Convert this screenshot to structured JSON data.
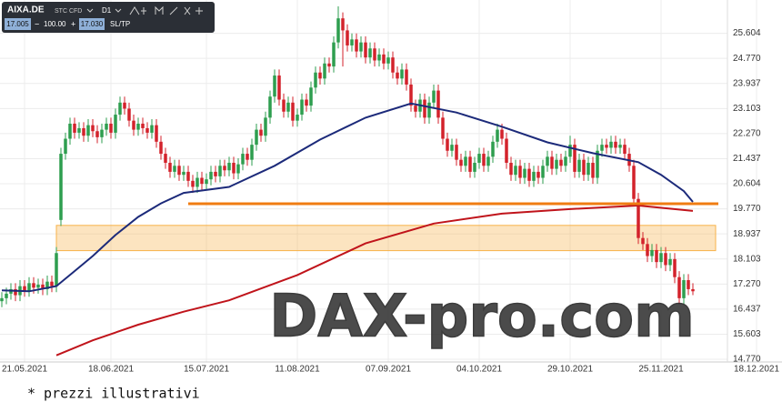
{
  "chart_data": {
    "type": "candlestick",
    "toolbar": {
      "symbol": "AIXA.DE",
      "instrument": "STC CFD",
      "timeframe": "D1",
      "bid": "17.005",
      "minus": "−",
      "volume": "100.00",
      "plus": "+",
      "ask": "17.030",
      "sl_tp": "SL/TP"
    },
    "watermark": "DAX-pro.com",
    "footnote": "* prezzi illustrativi",
    "up_color": "#2e9e4f",
    "down_color": "#d3222b",
    "ylim": [
      14.68,
      26.71
    ],
    "yticks": [
      25.604,
      {
        "value": 24.77,
        "label": "24.770"
      },
      23.937,
      23.103,
      {
        "value": 22.27,
        "label": "22.270"
      },
      21.437,
      20.604,
      {
        "value": 19.77,
        "label": "19.770"
      },
      18.937,
      18.103,
      {
        "value": 17.27,
        "label": "17.270"
      },
      16.437,
      15.603,
      {
        "value": 14.77,
        "label": "14.770"
      }
    ],
    "grid": true,
    "categories": [
      null,
      null,
      null,
      null,
      null,
      "21.05.2021",
      null,
      null,
      null,
      null,
      null,
      null,
      null,
      null,
      null,
      null,
      null,
      null,
      null,
      null,
      null,
      null,
      null,
      null,
      "18.06.2021",
      null,
      null,
      null,
      null,
      null,
      null,
      null,
      null,
      null,
      null,
      null,
      null,
      null,
      null,
      null,
      null,
      null,
      null,
      null,
      null,
      "15.07.2021",
      null,
      null,
      null,
      null,
      null,
      null,
      null,
      null,
      null,
      null,
      null,
      null,
      null,
      null,
      null,
      null,
      null,
      null,
      null,
      "11.08.2021",
      null,
      null,
      null,
      null,
      null,
      null,
      null,
      null,
      null,
      null,
      null,
      null,
      null,
      null,
      null,
      null,
      null,
      null,
      null,
      "07.09.2021",
      null,
      null,
      null,
      null,
      null,
      null,
      null,
      null,
      null,
      null,
      null,
      null,
      null,
      null,
      null,
      null,
      null,
      null,
      null,
      "04.10.2021",
      null,
      null,
      null,
      null,
      null,
      null,
      null,
      null,
      null,
      null,
      null,
      null,
      null,
      null,
      null,
      null,
      null,
      null,
      null,
      "29.10.2021",
      null,
      null,
      null,
      null,
      null,
      null,
      null,
      null,
      null,
      null,
      null,
      null,
      null,
      null,
      null,
      null,
      null,
      null,
      null,
      "25.11.2021",
      null,
      null,
      null,
      null,
      null,
      null,
      null,
      null,
      null,
      null,
      null,
      null,
      null,
      null,
      null,
      null,
      null,
      null,
      null,
      null,
      "18.12.2021"
    ],
    "ohlc": [
      [
        16.7,
        17.0,
        16.5,
        16.8
      ],
      [
        16.8,
        17.15,
        16.6,
        16.95
      ],
      [
        16.95,
        17.3,
        16.75,
        17.1
      ],
      [
        17.1,
        17.3,
        16.7,
        16.9
      ],
      [
        16.9,
        17.4,
        16.7,
        17.2
      ],
      [
        17.2,
        17.4,
        16.85,
        17.05
      ],
      [
        17.05,
        17.5,
        16.85,
        17.3
      ],
      [
        17.3,
        17.5,
        16.95,
        17.15
      ],
      [
        17.15,
        17.45,
        16.95,
        17.25
      ],
      [
        17.25,
        17.45,
        16.9,
        17.1
      ],
      [
        17.1,
        17.55,
        16.9,
        17.35
      ],
      [
        17.35,
        17.55,
        17.0,
        17.2
      ],
      [
        17.2,
        18.5,
        17.0,
        18.3
      ],
      [
        19.4,
        21.8,
        19.2,
        21.6
      ],
      [
        21.6,
        22.3,
        21.4,
        22.1
      ],
      [
        22.1,
        22.8,
        21.9,
        22.6
      ],
      [
        22.6,
        22.8,
        22.1,
        22.3
      ],
      [
        22.3,
        22.65,
        22.1,
        22.45
      ],
      [
        22.45,
        22.65,
        22.0,
        22.2
      ],
      [
        22.2,
        22.75,
        22.0,
        22.55
      ],
      [
        22.55,
        22.75,
        22.15,
        22.35
      ],
      [
        22.35,
        22.55,
        21.95,
        22.15
      ],
      [
        22.15,
        22.6,
        21.95,
        22.4
      ],
      [
        22.4,
        22.8,
        22.2,
        22.6
      ],
      [
        22.6,
        22.8,
        22.1,
        22.3
      ],
      [
        22.3,
        23.1,
        22.1,
        22.9
      ],
      [
        22.9,
        23.5,
        22.7,
        23.3
      ],
      [
        23.3,
        23.5,
        22.9,
        23.1
      ],
      [
        23.1,
        23.3,
        22.5,
        22.7
      ],
      [
        22.7,
        22.9,
        22.2,
        22.4
      ],
      [
        22.4,
        22.8,
        22.2,
        22.6
      ],
      [
        22.6,
        22.8,
        22.25,
        22.45
      ],
      [
        22.45,
        22.65,
        22.1,
        22.3
      ],
      [
        22.3,
        22.75,
        22.1,
        22.55
      ],
      [
        22.55,
        22.75,
        21.8,
        22.0
      ],
      [
        22.0,
        22.2,
        21.4,
        21.6
      ],
      [
        21.6,
        21.8,
        21.1,
        21.3
      ],
      [
        21.3,
        21.5,
        20.8,
        21.0
      ],
      [
        21.0,
        21.4,
        20.8,
        21.2
      ],
      [
        21.2,
        21.4,
        20.7,
        20.9
      ],
      [
        20.9,
        21.2,
        20.7,
        21.0
      ],
      [
        21.0,
        21.2,
        20.5,
        20.7
      ],
      [
        20.7,
        20.9,
        20.3,
        20.5
      ],
      [
        20.5,
        21.0,
        20.3,
        20.8
      ],
      [
        20.8,
        21.0,
        20.4,
        20.6
      ],
      [
        20.6,
        20.95,
        20.4,
        20.75
      ],
      [
        20.75,
        21.2,
        20.55,
        21.0
      ],
      [
        21.0,
        21.2,
        20.65,
        20.85
      ],
      [
        20.85,
        21.4,
        20.65,
        21.2
      ],
      [
        21.2,
        21.4,
        20.85,
        21.05
      ],
      [
        21.05,
        21.5,
        20.85,
        21.3
      ],
      [
        21.3,
        21.5,
        20.75,
        20.95
      ],
      [
        20.95,
        21.45,
        20.75,
        21.25
      ],
      [
        21.25,
        21.8,
        21.05,
        21.6
      ],
      [
        21.6,
        21.8,
        21.2,
        21.4
      ],
      [
        21.4,
        22.1,
        21.2,
        21.9
      ],
      [
        21.9,
        22.6,
        21.7,
        22.4
      ],
      [
        22.4,
        22.6,
        22.0,
        22.2
      ],
      [
        22.2,
        23.0,
        22.0,
        22.8
      ],
      [
        22.8,
        23.7,
        22.6,
        23.5
      ],
      [
        23.5,
        24.4,
        23.3,
        24.2
      ],
      [
        24.2,
        24.4,
        23.2,
        23.4
      ],
      [
        23.4,
        23.6,
        22.8,
        23.0
      ],
      [
        23.0,
        23.5,
        22.8,
        23.3
      ],
      [
        23.3,
        23.5,
        22.5,
        22.7
      ],
      [
        22.7,
        23.1,
        22.5,
        22.9
      ],
      [
        22.9,
        23.6,
        22.7,
        23.4
      ],
      [
        23.4,
        23.6,
        23.0,
        23.2
      ],
      [
        23.2,
        24.0,
        23.0,
        23.8
      ],
      [
        23.8,
        24.5,
        23.6,
        24.3
      ],
      [
        24.3,
        24.5,
        23.9,
        24.1
      ],
      [
        24.1,
        24.8,
        23.9,
        24.6
      ],
      [
        24.6,
        24.8,
        24.3,
        24.5
      ],
      [
        24.5,
        25.5,
        24.3,
        25.3
      ],
      [
        25.3,
        26.5,
        25.1,
        26.1
      ],
      [
        26.1,
        26.3,
        24.5,
        25.7
      ],
      [
        25.7,
        25.9,
        25.0,
        25.2
      ],
      [
        25.2,
        25.6,
        25.0,
        25.4
      ],
      [
        25.4,
        25.6,
        24.8,
        25.0
      ],
      [
        25.0,
        25.5,
        24.8,
        25.3
      ],
      [
        25.3,
        25.5,
        24.6,
        24.8
      ],
      [
        24.8,
        25.3,
        24.6,
        25.1
      ],
      [
        25.1,
        25.3,
        24.5,
        24.7
      ],
      [
        24.7,
        25.1,
        24.5,
        24.9
      ],
      [
        24.9,
        25.1,
        24.4,
        24.6
      ],
      [
        24.6,
        25.0,
        24.4,
        24.8
      ],
      [
        24.8,
        25.0,
        24.1,
        24.3
      ],
      [
        24.3,
        24.5,
        23.9,
        24.1
      ],
      [
        24.1,
        24.6,
        23.9,
        24.4
      ],
      [
        24.4,
        24.6,
        23.7,
        23.9
      ],
      [
        23.9,
        24.1,
        23.0,
        23.2
      ],
      [
        23.2,
        23.4,
        22.8,
        23.0
      ],
      [
        23.0,
        23.6,
        22.8,
        23.4
      ],
      [
        23.4,
        23.6,
        22.6,
        22.8
      ],
      [
        22.8,
        23.5,
        22.6,
        23.3
      ],
      [
        23.3,
        23.9,
        23.1,
        23.7
      ],
      [
        23.7,
        23.9,
        22.6,
        22.8
      ],
      [
        22.8,
        23.0,
        21.9,
        22.1
      ],
      [
        22.1,
        22.3,
        21.5,
        21.7
      ],
      [
        21.7,
        22.1,
        21.5,
        21.9
      ],
      [
        21.9,
        22.1,
        21.2,
        21.4
      ],
      [
        21.4,
        21.6,
        21.0,
        21.2
      ],
      [
        21.2,
        21.7,
        21.0,
        21.5
      ],
      [
        21.5,
        21.7,
        20.8,
        21.0
      ],
      [
        21.0,
        21.5,
        20.8,
        21.3
      ],
      [
        21.3,
        21.8,
        21.1,
        21.6
      ],
      [
        21.6,
        21.8,
        21.0,
        21.2
      ],
      [
        21.2,
        21.7,
        21.0,
        21.5
      ],
      [
        21.5,
        22.2,
        21.3,
        22.0
      ],
      [
        22.0,
        22.6,
        21.8,
        22.4
      ],
      [
        22.4,
        22.6,
        21.9,
        22.1
      ],
      [
        22.1,
        22.3,
        21.1,
        21.3
      ],
      [
        21.3,
        21.5,
        20.7,
        20.9
      ],
      [
        20.9,
        21.4,
        20.7,
        21.2
      ],
      [
        21.2,
        21.4,
        20.6,
        20.8
      ],
      [
        20.8,
        21.3,
        20.6,
        21.1
      ],
      [
        21.1,
        21.3,
        20.5,
        20.7
      ],
      [
        20.7,
        21.2,
        20.5,
        21.0
      ],
      [
        21.0,
        21.2,
        20.6,
        20.8
      ],
      [
        20.8,
        21.4,
        20.6,
        21.2
      ],
      [
        21.2,
        21.7,
        21.0,
        21.5
      ],
      [
        21.5,
        21.7,
        20.9,
        21.1
      ],
      [
        21.1,
        21.6,
        20.9,
        21.4
      ],
      [
        21.4,
        21.6,
        21.0,
        21.2
      ],
      [
        21.2,
        21.7,
        21.0,
        21.5
      ],
      [
        21.5,
        22.2,
        21.3,
        21.9
      ],
      [
        21.9,
        22.1,
        20.8,
        21.0
      ],
      [
        21.0,
        21.6,
        20.8,
        21.4
      ],
      [
        21.4,
        21.6,
        20.7,
        20.9
      ],
      [
        20.9,
        21.5,
        20.7,
        21.3
      ],
      [
        21.3,
        21.5,
        20.6,
        20.8
      ],
      [
        20.8,
        21.9,
        20.6,
        21.7
      ],
      [
        21.7,
        22.1,
        21.5,
        21.9
      ],
      [
        21.9,
        22.1,
        21.6,
        21.8
      ],
      [
        21.8,
        22.2,
        21.6,
        22.0
      ],
      [
        22.0,
        22.2,
        21.6,
        21.8
      ],
      [
        21.8,
        22.1,
        21.6,
        21.9
      ],
      [
        21.9,
        22.1,
        21.4,
        21.6
      ],
      [
        21.6,
        21.8,
        21.0,
        21.2
      ],
      [
        21.2,
        21.4,
        19.9,
        20.1
      ],
      [
        20.1,
        20.3,
        18.6,
        18.8
      ],
      [
        18.8,
        19.0,
        18.4,
        18.6
      ],
      [
        18.6,
        18.8,
        18.0,
        18.2
      ],
      [
        18.2,
        18.6,
        18.0,
        18.4
      ],
      [
        18.4,
        18.6,
        17.8,
        18.0
      ],
      [
        18.0,
        18.5,
        17.8,
        18.3
      ],
      [
        18.3,
        18.5,
        17.7,
        17.9
      ],
      [
        17.9,
        18.3,
        17.7,
        18.1
      ],
      [
        18.1,
        18.3,
        17.3,
        17.5
      ],
      [
        17.5,
        17.7,
        16.6,
        16.8
      ],
      [
        16.8,
        17.6,
        16.6,
        17.4
      ],
      [
        17.4,
        17.6,
        16.9,
        17.1
      ],
      [
        17.1,
        17.3,
        16.9,
        17.03
      ],
      null,
      null,
      null,
      null,
      null,
      null,
      null,
      null,
      null,
      null,
      null,
      null,
      null,
      null
    ],
    "series": [
      {
        "color": "#1c2a7a",
        "x": [
          0,
          6,
          12,
          16,
          20,
          25,
          30,
          35,
          40,
          50,
          60,
          70,
          80,
          90,
          100,
          110,
          120,
          130,
          140,
          145,
          150,
          152
        ],
        "values": [
          17.06,
          17.03,
          17.2,
          17.7,
          18.2,
          18.9,
          19.5,
          19.95,
          20.3,
          20.5,
          21.2,
          22.07,
          22.8,
          23.27,
          22.97,
          22.5,
          21.98,
          21.62,
          21.32,
          20.9,
          20.36,
          20.0
        ]
      },
      {
        "color": "#c0141b",
        "x": [
          12,
          20,
          30,
          40,
          50,
          65,
          80,
          95,
          110,
          125,
          140,
          152
        ],
        "values": [
          14.9,
          15.4,
          15.92,
          16.35,
          16.73,
          17.57,
          18.62,
          19.28,
          19.61,
          19.76,
          19.88,
          19.7
        ]
      }
    ],
    "support_level": 19.94,
    "support_color": "#f07c12",
    "zone": [
      18.38,
      19.22
    ],
    "zone_color": "#f7b24a"
  }
}
